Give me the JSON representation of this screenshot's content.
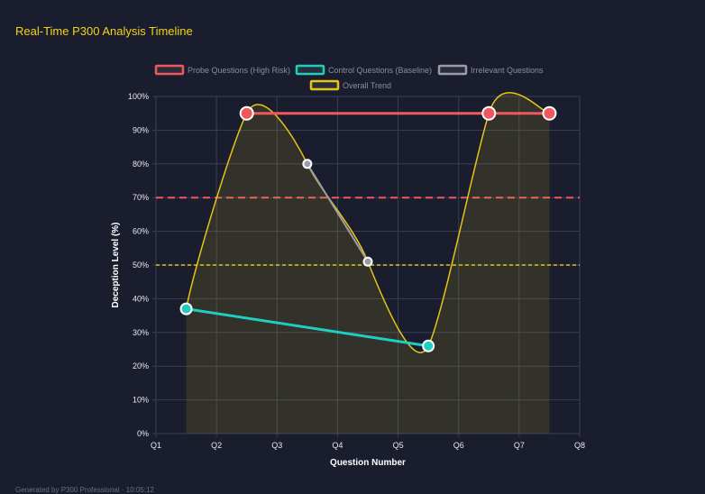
{
  "title": "Real-Time P300 Analysis Timeline",
  "footer": "Generated by P300 Professional · 10:05:12",
  "chart_data": {
    "type": "line",
    "xlabel": "Question Number",
    "ylabel": "Deception Level (%)",
    "x_ticks": [
      "Q1",
      "Q2",
      "Q3",
      "Q4",
      "Q5",
      "Q6",
      "Q7",
      "Q8"
    ],
    "y_ticks": [
      "0%",
      "10%",
      "20%",
      "30%",
      "40%",
      "50%",
      "60%",
      "70%",
      "80%",
      "90%",
      "100%"
    ],
    "xlim": [
      1,
      8
    ],
    "ylim": [
      0,
      100
    ],
    "grid": true,
    "legend": "top",
    "series": [
      {
        "name": "Probe Questions (High Risk)",
        "color": "#f0585e",
        "points": [
          [
            2.5,
            95
          ],
          [
            6.5,
            95
          ],
          [
            7.5,
            95
          ]
        ]
      },
      {
        "name": "Control Questions (Baseline)",
        "color": "#1ecfc0",
        "points": [
          [
            1.5,
            37
          ],
          [
            5.5,
            26
          ]
        ]
      },
      {
        "name": "Irrelevant Questions",
        "color": "#9a9ca8",
        "points": [
          [
            3.5,
            80
          ],
          [
            4.5,
            51
          ]
        ]
      },
      {
        "name": "Overall Trend",
        "color": "#e6c514",
        "fill": true,
        "smooth": true,
        "points": [
          [
            1.5,
            37
          ],
          [
            2.5,
            95
          ],
          [
            3.5,
            80
          ],
          [
            4.5,
            51
          ],
          [
            5.5,
            26
          ],
          [
            6.5,
            95
          ],
          [
            7.5,
            95
          ]
        ]
      }
    ],
    "thresholds": [
      {
        "value": 70,
        "color": "#f0585e"
      },
      {
        "value": 50,
        "color": "#e6c514"
      }
    ]
  }
}
